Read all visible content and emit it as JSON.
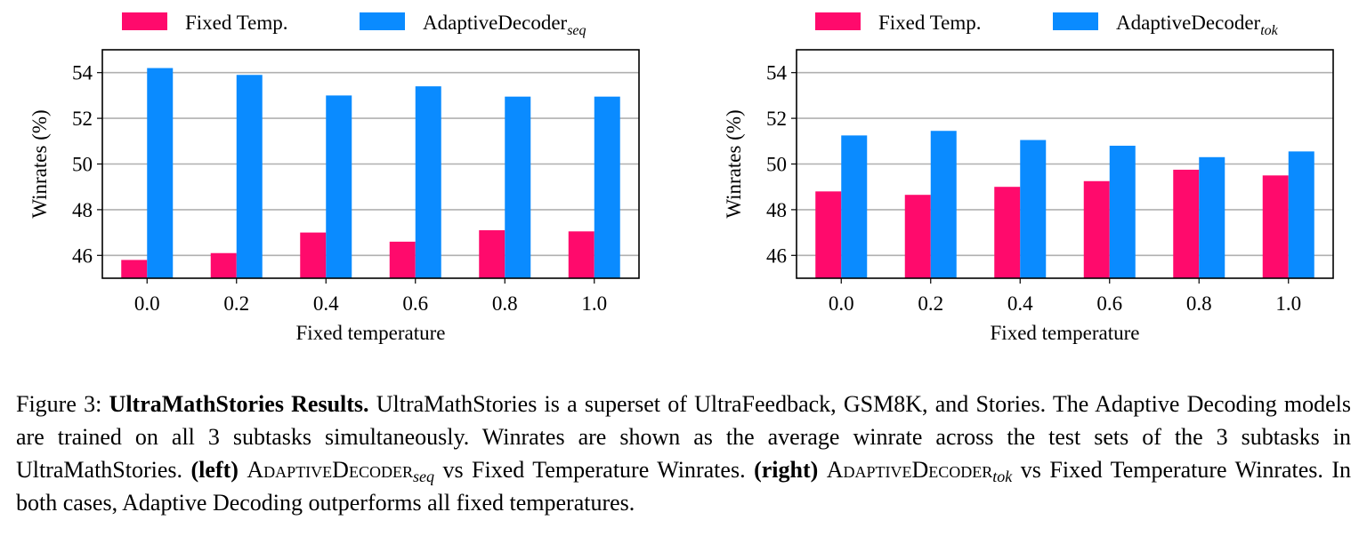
{
  "colors": {
    "fixed": "#ff0a6c",
    "adaptive": "#0a8bff",
    "grid": "#b0b0b0"
  },
  "chart_data": [
    {
      "type": "bar",
      "panel": "left",
      "categories": [
        "0.0",
        "0.2",
        "0.4",
        "0.6",
        "0.8",
        "1.0"
      ],
      "series": [
        {
          "name": "Fixed Temp.",
          "values": [
            45.8,
            46.1,
            47.0,
            46.6,
            47.1,
            47.05
          ]
        },
        {
          "name": "AdaptiveDecoder",
          "name_sub": "seq",
          "values": [
            54.2,
            53.9,
            53.0,
            53.4,
            52.95,
            52.95
          ]
        }
      ],
      "xlabel": "Fixed temperature",
      "ylabel": "Winrates (%)",
      "yticks": [
        46,
        48,
        50,
        52,
        54
      ],
      "ylim": [
        45,
        55
      ],
      "grid": "horizontal",
      "legend": "top"
    },
    {
      "type": "bar",
      "panel": "right",
      "categories": [
        "0.0",
        "0.2",
        "0.4",
        "0.6",
        "0.8",
        "1.0"
      ],
      "series": [
        {
          "name": "Fixed Temp.",
          "values": [
            48.8,
            48.65,
            49.0,
            49.25,
            49.75,
            49.5
          ]
        },
        {
          "name": "AdaptiveDecoder",
          "name_sub": "tok",
          "values": [
            51.25,
            51.45,
            51.05,
            50.8,
            50.3,
            50.55
          ]
        }
      ],
      "xlabel": "Fixed temperature",
      "ylabel": "Winrates (%)",
      "yticks": [
        46,
        48,
        50,
        52,
        54
      ],
      "ylim": [
        45,
        55
      ],
      "grid": "horizontal",
      "legend": "top"
    }
  ],
  "caption": {
    "figure_label": "Figure 3:",
    "title": "UltraMathStories Results.",
    "text1": "UltraMathStories is a superset of UltraFeedback, GSM8K, and Stories. The Adaptive Decoding models are trained on all 3 subtasks simultaneously. Winrates are shown as the average winrate across the test sets of the 3 subtasks in UltraMathStories.",
    "left_tag": "(left)",
    "method_seq": "AdaptiveDecoder",
    "sub_seq": "seq",
    "text2": "vs Fixed Temperature Winrates.",
    "right_tag": "(right)",
    "method_tok": "AdaptiveDecoder",
    "sub_tok": "tok",
    "text3": "vs Fixed Temperature Winrates. In both cases, Adaptive Decoding outperforms all fixed temperatures."
  }
}
